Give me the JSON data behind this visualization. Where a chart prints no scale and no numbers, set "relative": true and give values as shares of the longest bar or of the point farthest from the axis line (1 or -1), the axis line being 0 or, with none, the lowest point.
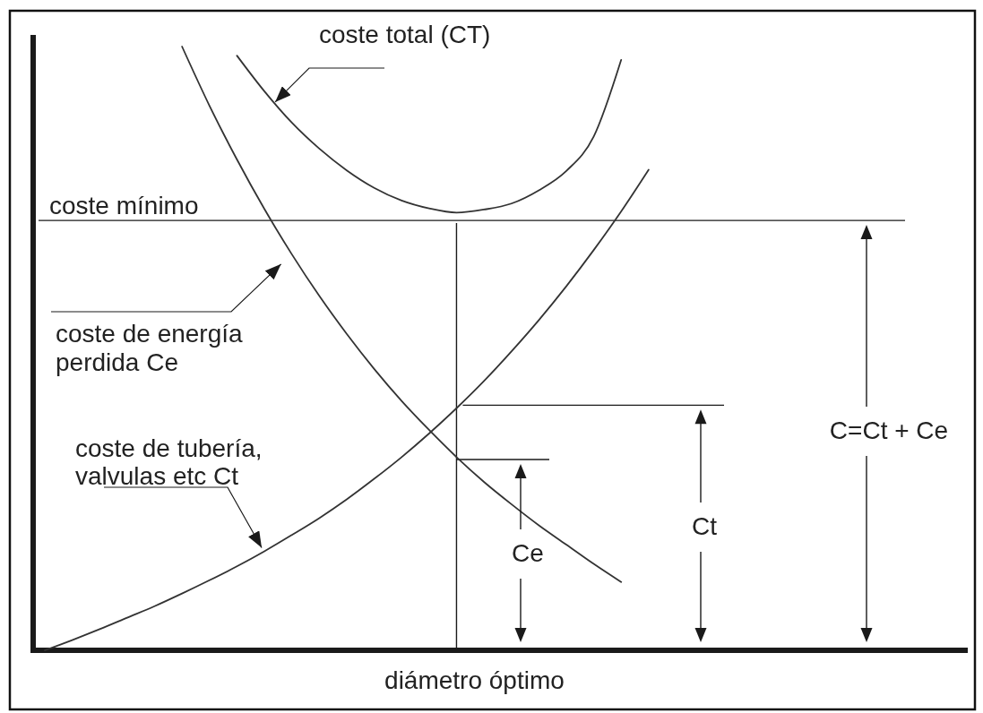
{
  "chart_data": {
    "type": "line",
    "relative": true,
    "xlabel": "diámetro óptimo",
    "categories": [
      null,
      null,
      null,
      null,
      null,
      null,
      null,
      null,
      null,
      null,
      null,
      null,
      null,
      null,
      null,
      null,
      null,
      null,
      null,
      null,
      null,
      null,
      null
    ],
    "series": [
      {
        "name": "coste total (CT)",
        "color": "#333333",
        "values": [
          null,
          null,
          null,
          null,
          null,
          null,
          null,
          0.985,
          0.926,
          0.874,
          0.831,
          0.795,
          0.766,
          0.745,
          0.732,
          0.725,
          0.73,
          0.74,
          0.762,
          0.794,
          0.851,
          0.978,
          null
        ]
      },
      {
        "name": "coste de energía perdida Ce",
        "color": "#333333",
        "values": [
          null,
          null,
          null,
          null,
          null,
          1.0,
          0.902,
          0.813,
          0.731,
          0.656,
          0.587,
          0.524,
          0.466,
          0.413,
          0.365,
          0.32,
          0.279,
          0.242,
          0.207,
          0.175,
          0.143,
          0.113,
          null
        ]
      },
      {
        "name": "coste de tubería, valvulas etc Ct",
        "color": "#333333",
        "values": [
          0,
          0.017,
          0.035,
          0.054,
          0.073,
          0.094,
          0.116,
          0.139,
          0.164,
          0.191,
          0.219,
          0.25,
          0.284,
          0.32,
          0.359,
          0.401,
          0.446,
          0.495,
          0.547,
          0.603,
          0.663,
          0.727,
          0.796
        ]
      }
    ],
    "ref_lines": [
      {
        "axis": "y",
        "value": 0.712,
        "label": "coste mínimo"
      },
      {
        "axis": "y",
        "value": 0.406
      },
      {
        "axis": "y",
        "value": 0.316
      }
    ],
    "annotations": [
      "Ce",
      "Ct",
      "C=Ct + Ce"
    ]
  }
}
